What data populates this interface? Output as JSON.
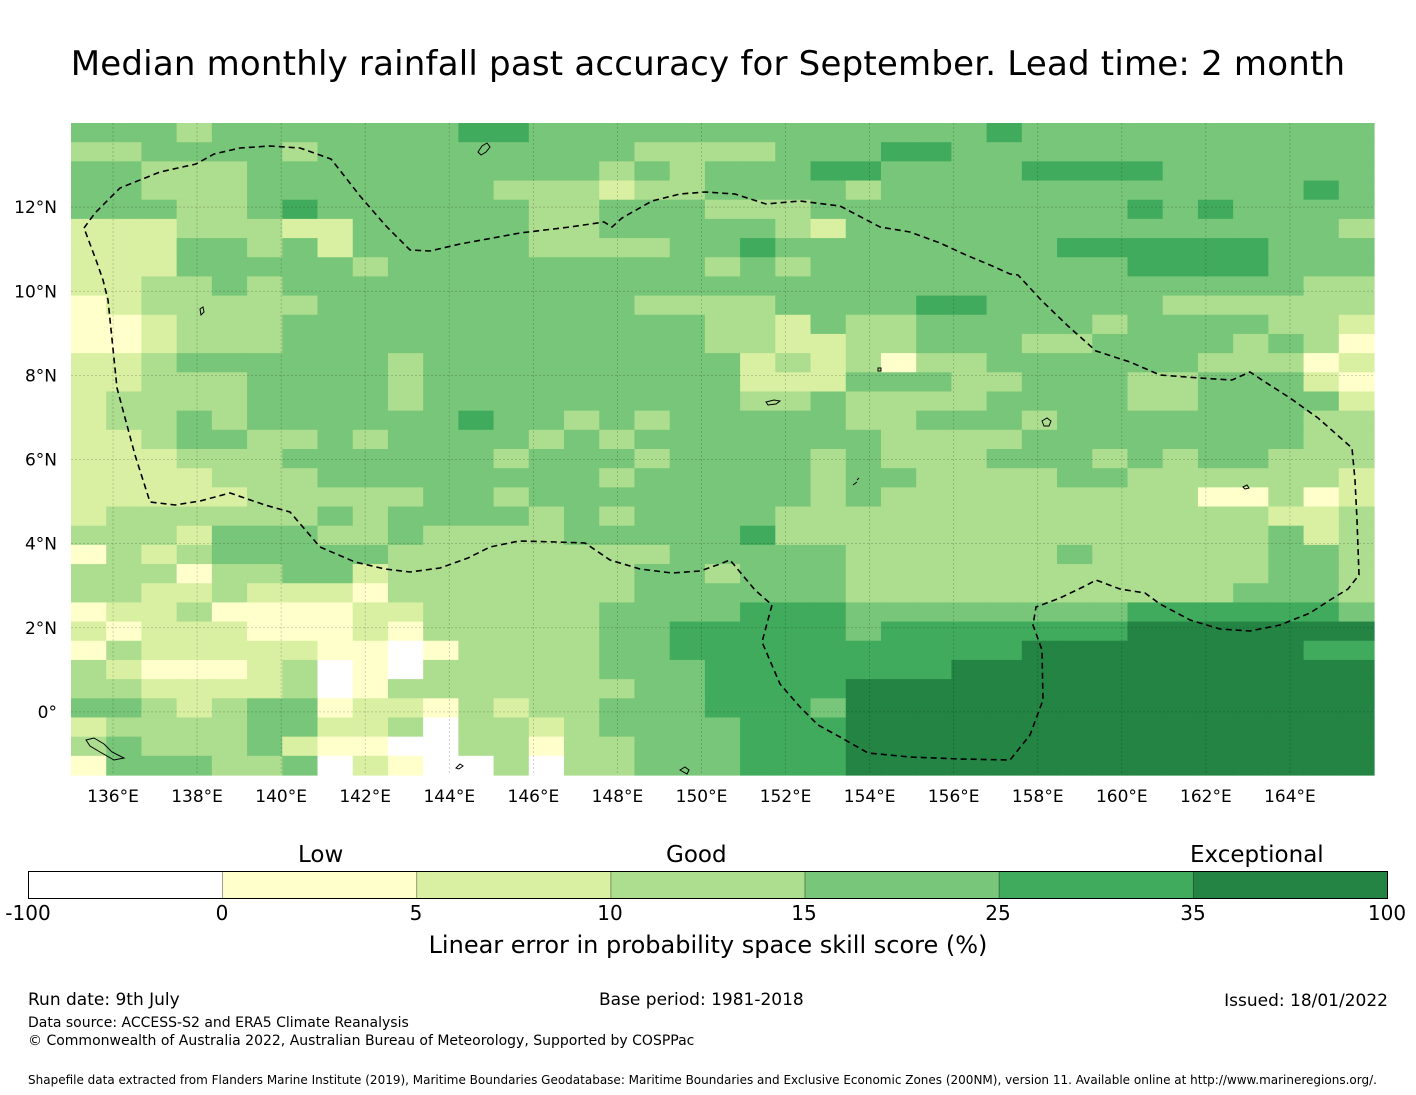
{
  "title": "Median monthly rainfall past accuracy for September. Lead time: 2 month",
  "map": {
    "lon_ticks": [
      "136°E",
      "138°E",
      "140°E",
      "142°E",
      "144°E",
      "146°E",
      "148°E",
      "150°E",
      "152°E",
      "154°E",
      "156°E",
      "158°E",
      "160°E",
      "162°E",
      "164°E"
    ],
    "lat_ticks": [
      "12°N",
      "10°N",
      "8°N",
      "6°N",
      "4°N",
      "2°N",
      "0°"
    ],
    "lon_range": [
      135,
      166
    ],
    "lat_range": [
      -1.5,
      14.0
    ],
    "grid": true,
    "boundary_style": "dashed",
    "rows_north_to_south": [
      "4443444444455444444444444454444444444",
      "3344443444444444333344455444444444444",
      "4433344444444443434445544445555444444",
      "4433344444443332334444344444444444454",
      "4443345444444334443334444444445454444",
      "2223332244444334444432444444444444443",
      "2224434244444333344544444444555555444",
      "2224444434444444443434444444445555444",
      "2233434444444444444444444444444444433",
      "1233333444444444333344445544444333333",
      "1123334444444444443324334444434444332",
      "1123334444444444443322334443344443431",
      "2234444443444444444232313344444433312",
      "2233344443444444444222444334443344421",
      "2333344443444444444334333344443344442",
      "2334344444454434344444334443444444433",
      "2234433434444343444444433334444444433",
      "2223334444443444344443433344434344333",
      "2222333444444443444443443333443333332",
      "2222233333443444444443433333333311312",
      "2333333434444343444433333333333333223",
      "3332444334333344444533333333333333423",
      "1323444443333333344444333333433333443",
      "3331334423333333443444333333333333443",
      "3322322213333333444444333333333334443",
      "1223111122333334444555444444445555554",
      "2122211121333334455555455555556666666",
      "1322222110133334455555555556666666655",
      "3211123010333334445555555666666666666",
      "3322223013333333445555666666666666666",
      "4432344122132334445554666666666666666",
      "2333344223033234444555666666666666666",
      "3433342110033133444555666666666666666",
      "1444334021003033444555666666666666666"
    ]
  },
  "colorbar": {
    "categories": [
      "Low",
      "Good",
      "Exceptional"
    ],
    "ticks": [
      "-100",
      "0",
      "5",
      "10",
      "15",
      "25",
      "35",
      "100"
    ],
    "colors": [
      "#ffffff",
      "#ffffcc",
      "#d9f0a3",
      "#addd8e",
      "#78c679",
      "#41ab5d",
      "#238443"
    ],
    "label": "Linear error in probability space skill score (%)"
  },
  "footer": {
    "run_date": "Run date: 9th July",
    "base_period": "Base period: 1981-2018",
    "issued": "Issued: 18/01/2022",
    "data_source": "Data source: ACCESS-S2 and ERA5 Climate Reanalysis",
    "copyright": "© Commonwealth of Australia 2022, Australian Bureau of Meteorology, Supported by COSPPac",
    "shapefile": "Shapefile data extracted from Flanders Marine Institute (2019), Maritime Boundaries Geodatabase: Maritime Boundaries and Exclusive Economic Zones (200NM), version 11. Available online at http://www.marineregions.org/."
  }
}
